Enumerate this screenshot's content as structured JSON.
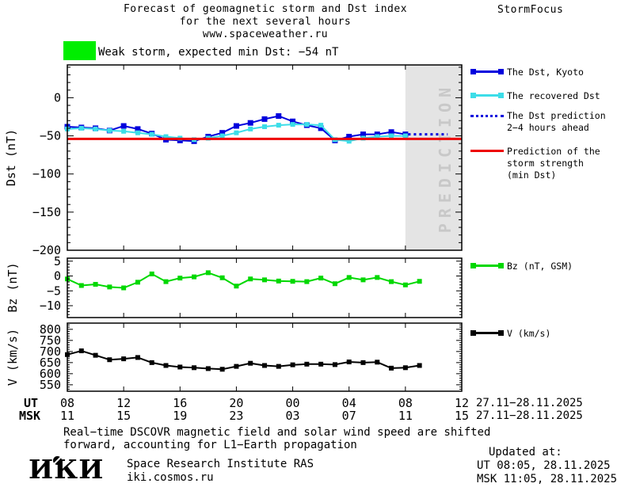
{
  "header": {
    "title_line1": "Forecast of geomagnetic storm and Dst index",
    "title_line2": "for the next several hours",
    "title_line3": "www.spaceweather.ru",
    "brand": "StormFocus"
  },
  "status": {
    "text": "Weak storm, expected min Dst: −54 nT"
  },
  "colors": {
    "dst_blue": "#0000dd",
    "recovered_cyan": "#3cdde8",
    "prediction_red": "#ee0000",
    "bz_green": "#00d800",
    "v_black": "#000000",
    "storm_level_green": "#00ee00",
    "prediction_zone_bg": "#e4e4e4",
    "prediction_zone_text": "#c8c8c8"
  },
  "legend": {
    "dst_kyoto": "The Dst, Kyoto",
    "recovered_dst": "The recovered Dst",
    "dst_prediction_line1": "The Dst prediction",
    "dst_prediction_line2": "2−4 hours ahead",
    "storm_strength_line1": "Prediction of the",
    "storm_strength_line2": "storm strength",
    "storm_strength_line3": "(min Dst)",
    "bz": "Bz (nT, GSM)",
    "v": "V (km/s)"
  },
  "xaxis": {
    "row1_label": "UT",
    "row2_label": "MSK",
    "hours": [
      8,
      12,
      16,
      20,
      24,
      28,
      32,
      36
    ],
    "ut_labels": [
      "08",
      "12",
      "16",
      "20",
      "00",
      "04",
      "08",
      "12"
    ],
    "msk_labels": [
      "11",
      "15",
      "19",
      "23",
      "03",
      "07",
      "11",
      "15"
    ],
    "date_range_ut": "27.11−28.11.2025",
    "date_range_msk": "27.11−28.11.2025"
  },
  "chart_data": [
    {
      "type": "line",
      "name": "dst",
      "ylabel": "Dst (nT)",
      "ylim": [
        -200,
        43
      ],
      "yticks": [
        0,
        -50,
        -100,
        -150,
        -200
      ],
      "x_start_hour_ut": 8,
      "x_step_hours": 1,
      "grid": false,
      "series": [
        {
          "name": "The Dst, Kyoto",
          "color_key": "dst_blue",
          "marker": "square",
          "values": [
            -38,
            -39,
            -40,
            -43,
            -37,
            -41,
            -47,
            -55,
            -56,
            -57,
            -51,
            -46,
            -37,
            -33,
            -28,
            -24,
            -31,
            -36,
            -40,
            -56,
            -51,
            -48,
            -48,
            -45,
            -48
          ]
        },
        {
          "name": "The recovered Dst",
          "color_key": "recovered_cyan",
          "marker": "square",
          "values": [
            -41,
            -40,
            -41,
            -43,
            -44,
            -46,
            -48,
            -51,
            -53,
            -55,
            -53,
            -50,
            -46,
            -41,
            -38,
            -36,
            -35,
            -35,
            -36,
            -55,
            -57,
            -53,
            -51,
            -50,
            -50
          ]
        },
        {
          "name": "The Dst prediction 2−4 hours ahead",
          "color_key": "dst_blue",
          "style": "dotted",
          "x_hours": [
            32.2,
            35
          ],
          "values": [
            -48,
            -48
          ]
        },
        {
          "name": "Prediction of the storm strength (min Dst)",
          "color_key": "prediction_red",
          "style": "solid_line",
          "x_hours": [
            8,
            36
          ],
          "values": [
            -54,
            -54
          ]
        }
      ],
      "prediction_zone": {
        "start_hour": 32,
        "end_hour": 36,
        "label": "PREDICTION"
      },
      "expected_min_dst_nT": -54
    },
    {
      "type": "line",
      "name": "bz",
      "ylabel": "Bz (nT)",
      "ylim": [
        -14,
        6
      ],
      "yticks": [
        5,
        0,
        -5,
        -10
      ],
      "x_start_hour_ut": 8,
      "x_step_hours": 1,
      "grid": false,
      "series": [
        {
          "name": "Bz (nT, GSM)",
          "color_key": "bz_green",
          "marker": "square",
          "values": [
            -1,
            -3.2,
            -2.8,
            -3.7,
            -4,
            -2.1,
            0.7,
            -1.9,
            -0.7,
            -0.3,
            1.1,
            -0.6,
            -3.4,
            -1,
            -1.3,
            -1.7,
            -1.8,
            -1.9,
            -0.7,
            -2.6,
            -0.5,
            -1.3,
            -0.5,
            -1.9,
            -3,
            -1.8
          ]
        }
      ]
    },
    {
      "type": "line",
      "name": "v",
      "ylabel": "V (km/s)",
      "ylim": [
        521,
        828
      ],
      "yticks": [
        800,
        750,
        700,
        650,
        600,
        550
      ],
      "x_start_hour_ut": 8,
      "x_step_hours": 1,
      "grid": false,
      "series": [
        {
          "name": "V (km/s)",
          "color_key": "v_black",
          "marker": "square",
          "values": [
            686,
            703,
            683,
            663,
            667,
            673,
            650,
            637,
            630,
            627,
            623,
            620,
            633,
            647,
            637,
            633,
            640,
            643,
            643,
            641,
            653,
            650,
            652,
            625,
            627,
            637
          ]
        }
      ]
    }
  ],
  "footer": {
    "note_line1": "Real−time DSCOVR magnetic field and solar wind speed are shifted",
    "note_line2": "forward, accounting for L1−Earth propagation",
    "logo": "ИКИ",
    "org_line1": "Space Research Institute RAS",
    "org_line2": "iki.cosmos.ru",
    "updated_label": "Updated at:",
    "updated_ut": "UT  08:05, 28.11.2025",
    "updated_msk": "MSK 11:05, 28.11.2025"
  }
}
